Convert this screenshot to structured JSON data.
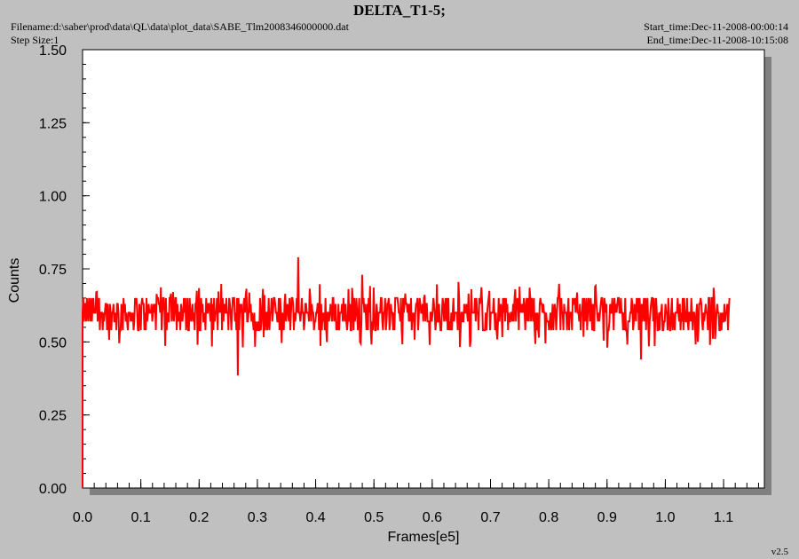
{
  "header": {
    "title": "DELTA_T1-5;",
    "filename": "Filename:d:\\saber\\prod\\data\\QL\\data\\plot_data\\SABE_Tlm2008346000000.dat",
    "step_size": "Step Size:1",
    "start_time": "Start_time:Dec-11-2008-00:00:14",
    "end_time": "End_time:Dec-11-2008-10:15:08"
  },
  "footer": {
    "version": "v2.5"
  },
  "chart_data": {
    "type": "line",
    "title": "DELTA_T1-5;",
    "xlabel": "Frames[e5]",
    "ylabel": "Counts",
    "xlim": [
      0.0,
      1.17
    ],
    "ylim": [
      0.0,
      1.5
    ],
    "x_ticks": [
      "0.0",
      "0.1",
      "0.2",
      "0.3",
      "0.4",
      "0.5",
      "0.6",
      "0.7",
      "0.8",
      "0.9",
      "1.0",
      "1.1"
    ],
    "y_ticks": [
      "0.00",
      "0.25",
      "0.50",
      "0.75",
      "1.00",
      "1.25",
      "1.50"
    ],
    "grid": false,
    "series_color": "#ff0000",
    "series": [
      {
        "x_range": [
          0.0,
          1.11
        ],
        "start_value": 0.0,
        "baseline": 0.6,
        "band": [
          0.53,
          0.66
        ],
        "spikes": [
          {
            "x": 0.267,
            "y": 0.385
          },
          {
            "x": 0.37,
            "y": 0.79
          },
          {
            "x": 0.48,
            "y": 0.73
          },
          {
            "x": 0.645,
            "y": 0.705
          },
          {
            "x": 0.958,
            "y": 0.44
          },
          {
            "x": 0.197,
            "y": 0.49
          }
        ]
      }
    ]
  }
}
